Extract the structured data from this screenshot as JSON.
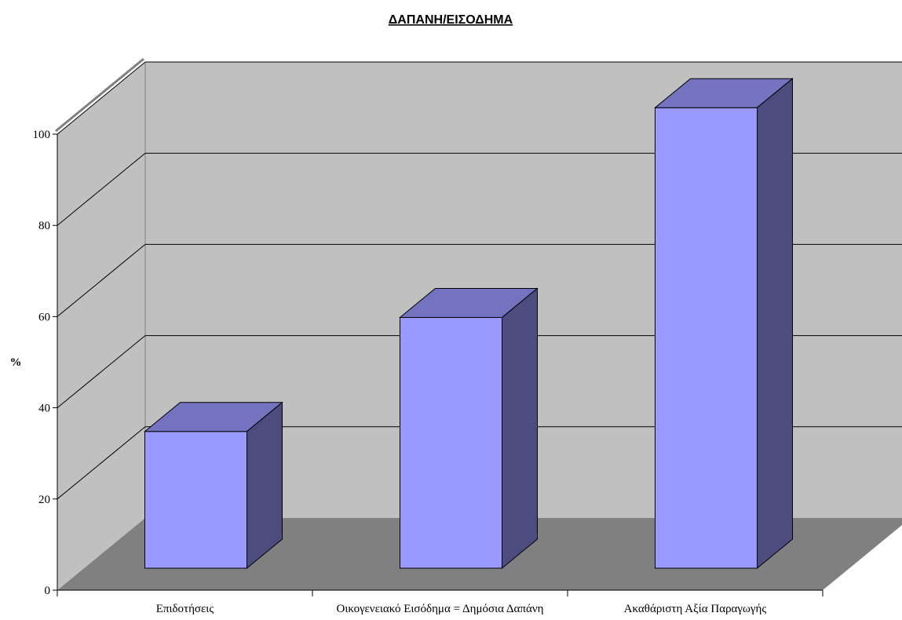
{
  "chart_data": {
    "type": "bar",
    "title": "ΔΑΠΑΝΗ/ΕΙΣΟΔΗΜΑ",
    "xlabel": "",
    "ylabel": "%",
    "categories": [
      "Επιδοτήσεις",
      "Οικογενειακό Εισόδημα = Δημόσια Δαπάνη",
      "Ακαθάριστη Αξία Παραγωγής"
    ],
    "values": [
      30,
      55,
      101
    ],
    "ylim": [
      0,
      100
    ],
    "yticks": [
      "0",
      "20",
      "40",
      "60",
      "80",
      "100"
    ],
    "grid": true,
    "three_d": true,
    "colors": {
      "bar_front": "#9999ff",
      "bar_top": "#7373bf",
      "bar_side": "#4c4c7f",
      "back_wall": "#c0c0c0",
      "side_wall": "#c0c0c0",
      "floor": "#808080",
      "gridline": "#000000"
    }
  }
}
